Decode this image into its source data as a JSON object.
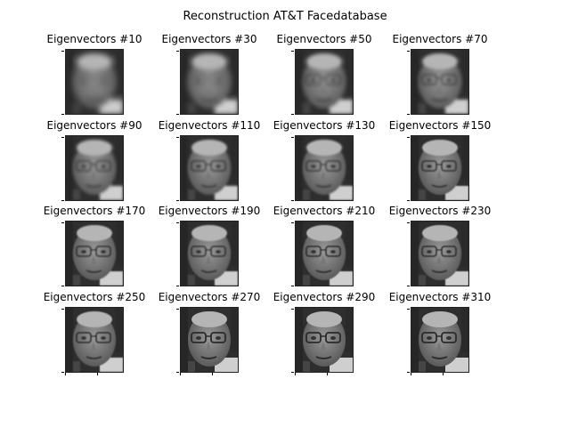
{
  "figure": {
    "title": "Reconstruction AT&T Facedatabase"
  },
  "panels": [
    {
      "label": "Eigenvectors #10",
      "blur": 0.95
    },
    {
      "label": "Eigenvectors #30",
      "blur": 0.75
    },
    {
      "label": "Eigenvectors #50",
      "blur": 0.6
    },
    {
      "label": "Eigenvectors #70",
      "blur": 0.5
    },
    {
      "label": "Eigenvectors #90",
      "blur": 0.42
    },
    {
      "label": "Eigenvectors #110",
      "blur": 0.36
    },
    {
      "label": "Eigenvectors #130",
      "blur": 0.3
    },
    {
      "label": "Eigenvectors #150",
      "blur": 0.26
    },
    {
      "label": "Eigenvectors #170",
      "blur": 0.22
    },
    {
      "label": "Eigenvectors #190",
      "blur": 0.19
    },
    {
      "label": "Eigenvectors #210",
      "blur": 0.16
    },
    {
      "label": "Eigenvectors #230",
      "blur": 0.14
    },
    {
      "label": "Eigenvectors #250",
      "blur": 0.12
    },
    {
      "label": "Eigenvectors #270",
      "blur": 0.1
    },
    {
      "label": "Eigenvectors #290",
      "blur": 0.08
    },
    {
      "label": "Eigenvectors #310",
      "blur": 0.06
    }
  ]
}
